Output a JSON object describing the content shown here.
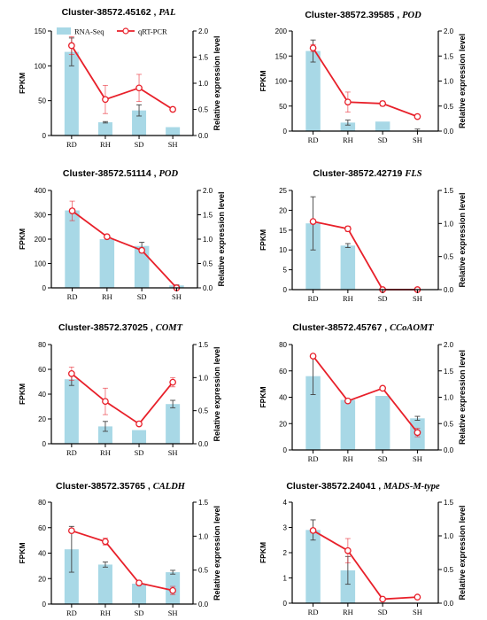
{
  "legend": {
    "bar_label": "RNA-Seq",
    "line_label": "qRT-PCR"
  },
  "colors": {
    "bar": "#a8d8e6",
    "line": "#e8202a",
    "error": "#444444",
    "axis": "#000000"
  },
  "chart_data": [
    {
      "type": "bar",
      "title": "Cluster-38572.45162 , ",
      "gene": "PAL",
      "categories": [
        "RD",
        "RH",
        "SD",
        "SH"
      ],
      "ylabel": "FPKM",
      "y2label": "Relative expression level",
      "ylim": [
        0,
        150
      ],
      "yticks": [
        0,
        50,
        100,
        150
      ],
      "y2lim": [
        0,
        2.0
      ],
      "y2ticks": [
        "0.0",
        "0.5",
        "1.0",
        "1.5",
        "2.0"
      ],
      "series": [
        {
          "kind": "bar",
          "values": [
            120,
            19,
            36,
            12
          ],
          "errors": [
            20,
            1,
            8,
            0
          ]
        },
        {
          "kind": "line",
          "values": [
            1.72,
            0.69,
            0.91,
            0.5
          ],
          "errors": [
            0.17,
            0.27,
            0.26,
            0.03
          ]
        }
      ]
    },
    {
      "type": "bar",
      "title": "Cluster-38572.39585 , ",
      "gene": "POD",
      "categories": [
        "RD",
        "RH",
        "SD",
        "SH"
      ],
      "ylabel": "FPKM",
      "y2label": "Relative expression level",
      "ylim": [
        0,
        200
      ],
      "yticks": [
        0,
        50,
        100,
        150,
        200
      ],
      "y2lim": [
        0,
        2.0
      ],
      "y2ticks": [
        "0.0",
        "0.5",
        "1.0",
        "1.5",
        "2.0"
      ],
      "series": [
        {
          "kind": "bar",
          "values": [
            160,
            17,
            19,
            1
          ],
          "errors": [
            22,
            5,
            0,
            3
          ]
        },
        {
          "kind": "line",
          "values": [
            1.66,
            0.58,
            0.55,
            0.29
          ],
          "errors": [
            0.07,
            0.2,
            0.05,
            0.02
          ]
        }
      ]
    },
    {
      "type": "bar",
      "title": "Cluster-38572.51114 , ",
      "gene": "POD",
      "categories": [
        "RD",
        "RH",
        "SD",
        "SH"
      ],
      "ylabel": "FPKM",
      "y2label": "Relative expression level",
      "ylim": [
        0,
        400
      ],
      "yticks": [
        0,
        100,
        200,
        300,
        400
      ],
      "y2lim": [
        0,
        2.0
      ],
      "y2ticks": [
        "0.0",
        "0.5",
        "1.0",
        "1.5",
        "2.0"
      ],
      "series": [
        {
          "kind": "bar",
          "values": [
            318,
            200,
            172,
            10
          ],
          "errors": [
            6,
            0,
            15,
            2
          ]
        },
        {
          "kind": "line",
          "values": [
            1.58,
            1.05,
            0.77,
            0.0
          ],
          "errors": [
            0.2,
            0.02,
            0.05,
            0.0
          ]
        }
      ]
    },
    {
      "type": "bar",
      "title": "Cluster-38572.42719 ",
      "gene": "FLS",
      "categories": [
        "RD",
        "RH",
        "SD",
        "SH"
      ],
      "ylabel": "FPKM",
      "y2label": "Relative expression level",
      "ylim": [
        0,
        25
      ],
      "yticks": [
        0,
        5,
        10,
        15,
        20,
        25
      ],
      "y2lim": [
        0,
        1.5
      ],
      "y2ticks": [
        "0.0",
        "0.5",
        "1.0",
        "1.5"
      ],
      "series": [
        {
          "kind": "bar",
          "values": [
            16.7,
            11.1,
            0,
            0
          ],
          "errors": [
            6.7,
            0.5,
            0,
            0
          ]
        },
        {
          "kind": "line",
          "values": [
            1.03,
            0.92,
            0.0,
            0.0
          ],
          "errors": [
            0.0,
            0.04,
            0.0,
            0.0
          ]
        }
      ]
    },
    {
      "type": "bar",
      "title": "Cluster-38572.37025 , ",
      "gene": "COMT",
      "categories": [
        "RD",
        "RH",
        "SD",
        "SH"
      ],
      "ylabel": "FPKM",
      "y2label": "Relative expression level",
      "ylim": [
        0,
        80
      ],
      "yticks": [
        0,
        20,
        40,
        60,
        80
      ],
      "y2lim": [
        0,
        1.5
      ],
      "y2ticks": [
        "0.0",
        "0.5",
        "1.0",
        "1.5"
      ],
      "series": [
        {
          "kind": "bar",
          "values": [
            52,
            14,
            11,
            32
          ],
          "errors": [
            5,
            4,
            0,
            3
          ]
        },
        {
          "kind": "line",
          "values": [
            1.06,
            0.64,
            0.3,
            0.93
          ],
          "errors": [
            0.1,
            0.2,
            0.0,
            0.07
          ]
        }
      ]
    },
    {
      "type": "bar",
      "title": "Cluster-38572.45767 , ",
      "gene": "CCoAOMT",
      "categories": [
        "RD",
        "RH",
        "SD",
        "SH"
      ],
      "ylabel": "FPKM",
      "y2label": "Relative expression level",
      "ylim": [
        0,
        80
      ],
      "yticks": [
        0,
        20,
        40,
        60,
        80
      ],
      "y2lim": [
        0,
        2.0
      ],
      "y2ticks": [
        "0.0",
        "0.5",
        "1.0",
        "1.5",
        "2.0"
      ],
      "series": [
        {
          "kind": "bar",
          "values": [
            56,
            38,
            41,
            24
          ],
          "errors": [
            14,
            0,
            0,
            1.5
          ]
        },
        {
          "kind": "line",
          "values": [
            1.78,
            0.93,
            1.17,
            0.33
          ],
          "errors": [
            0.0,
            0.03,
            0.0,
            0.08
          ]
        }
      ]
    },
    {
      "type": "bar",
      "title": "Cluster-38572.35765 , ",
      "gene": "CALDH",
      "categories": [
        "RD",
        "RH",
        "SD",
        "SH"
      ],
      "ylabel": "FPKM",
      "y2label": "Relative expression level",
      "ylim": [
        0,
        80
      ],
      "yticks": [
        0,
        20,
        40,
        60,
        80
      ],
      "y2lim": [
        0,
        1.5
      ],
      "y2ticks": [
        "0.0",
        "0.5",
        "1.0",
        "1.5"
      ],
      "series": [
        {
          "kind": "bar",
          "values": [
            43,
            31,
            16,
            25
          ],
          "errors": [
            18,
            2,
            0,
            1.5
          ]
        },
        {
          "kind": "line",
          "values": [
            1.08,
            0.92,
            0.31,
            0.2
          ],
          "errors": [
            0.03,
            0.05,
            0.0,
            0.06
          ]
        }
      ]
    },
    {
      "type": "bar",
      "title": "Cluster-38572.24041 , ",
      "gene": "MADS-M-type",
      "categories": [
        "RD",
        "RH",
        "SD",
        "SH"
      ],
      "ylabel": "FPKM",
      "y2label": "Relative expression level",
      "ylim": [
        0,
        4
      ],
      "yticks": [
        0,
        1,
        2,
        3,
        4
      ],
      "y2lim": [
        0,
        1.5
      ],
      "y2ticks": [
        "0.0",
        "0.5",
        "1.0",
        "1.5"
      ],
      "series": [
        {
          "kind": "bar",
          "values": [
            2.9,
            1.3,
            0,
            0
          ],
          "errors": [
            0.4,
            0.55,
            0,
            0
          ]
        },
        {
          "kind": "line",
          "values": [
            1.08,
            0.78,
            0.06,
            0.09
          ],
          "errors": [
            0.03,
            0.18,
            0.0,
            0.0
          ]
        }
      ]
    }
  ]
}
